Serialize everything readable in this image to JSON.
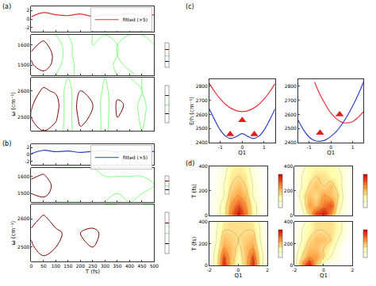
{
  "chart_data": [
    {
      "type": "line",
      "panel": "(a)",
      "legend": "upper right",
      "tick_labels": "y",
      "x": [
        0,
        50,
        100,
        150,
        200,
        250,
        300,
        350,
        400,
        450,
        500
      ],
      "xlim": [
        0,
        500
      ],
      "xticks": [
        0,
        50,
        100,
        150,
        200,
        250,
        300,
        350,
        400,
        450,
        500
      ],
      "ylim": [
        -3,
        3
      ],
      "yticks": [
        -2,
        0,
        2
      ],
      "series": [
        {
          "name": "fitted (×5)",
          "color": "#e03030",
          "values": [
            0.5,
            1.5,
            1.0,
            0.8,
            1.2,
            0.6,
            1.0,
            0.9,
            1.3,
            0.7,
            1.0
          ]
        }
      ]
    },
    {
      "type": "contour",
      "tick_labels": "y",
      "x": [
        0,
        50,
        100,
        150,
        200,
        250,
        300,
        350,
        400,
        450,
        500
      ],
      "y": [
        1450,
        1500,
        1550,
        1600,
        1650
      ],
      "xlim": [
        0,
        500
      ],
      "xticks": [
        0,
        50,
        100,
        150,
        200,
        250,
        300,
        350,
        400,
        450,
        500
      ],
      "ylim": [
        1450,
        1650
      ],
      "yticks": [
        1500,
        1600
      ],
      "colorbar_range": [
        -1,
        1
      ],
      "z": [
        [
          0.1,
          0.2,
          0,
          -0.1,
          0.1,
          0,
          0.1,
          0,
          -0.1,
          0.1,
          0
        ],
        [
          0.4,
          0.9,
          0.2,
          -0.3,
          0.3,
          0.1,
          0.2,
          -0.1,
          0.1,
          0.2,
          0
        ],
        [
          0.6,
          1.0,
          0.3,
          -0.2,
          0.4,
          0.2,
          0.3,
          0,
          0.2,
          0.3,
          0.1
        ],
        [
          0.3,
          0.7,
          0.1,
          -0.1,
          0.2,
          0,
          0.1,
          0,
          0.1,
          0.1,
          0
        ],
        [
          0,
          0.2,
          0,
          0,
          0.1,
          0,
          0,
          0,
          0,
          0,
          0
        ]
      ]
    },
    {
      "type": "contour",
      "tick_labels": "y",
      "ylabel": "ω (cm⁻¹)",
      "x": [
        0,
        50,
        100,
        150,
        200,
        250,
        300,
        350,
        400,
        450,
        500
      ],
      "y": [
        2450,
        2500,
        2550,
        2600,
        2650
      ],
      "xlim": [
        0,
        500
      ],
      "xticks": [
        0,
        50,
        100,
        150,
        200,
        250,
        300,
        350,
        400,
        450,
        500
      ],
      "ylim": [
        2450,
        2650
      ],
      "yticks": [
        2500,
        2600
      ],
      "colorbar_range": [
        -1,
        1
      ],
      "z": [
        [
          0.2,
          0.5,
          0.3,
          -0.2,
          0.4,
          0.2,
          -0.1,
          0.3,
          0.1,
          0,
          0.2
        ],
        [
          0.5,
          0.9,
          0.6,
          -0.3,
          0.7,
          0.4,
          -0.2,
          0.5,
          0.3,
          -0.1,
          0.3
        ],
        [
          0.4,
          1.0,
          0.8,
          -0.4,
          0.9,
          0.5,
          -0.3,
          0.6,
          0.4,
          -0.2,
          0.4
        ],
        [
          0.2,
          0.6,
          0.4,
          -0.2,
          0.5,
          0.3,
          -0.1,
          0.3,
          0.2,
          0,
          0.2
        ],
        [
          0,
          0.2,
          0.1,
          0,
          0.2,
          0.1,
          0,
          0.1,
          0,
          0,
          0.1
        ]
      ]
    },
    {
      "type": "line",
      "panel": "(b)",
      "legend": "upper right",
      "tick_labels": "y",
      "x": [
        0,
        50,
        100,
        150,
        200,
        250,
        300,
        350,
        400,
        450,
        500
      ],
      "xlim": [
        0,
        500
      ],
      "xticks": [
        0,
        50,
        100,
        150,
        200,
        250,
        300,
        350,
        400,
        450,
        500
      ],
      "ylim": [
        -3,
        3
      ],
      "yticks": [
        -2,
        0,
        2
      ],
      "series": [
        {
          "name": "fitted (×5)",
          "color": "#2040c0",
          "values": [
            0.2,
            1.2,
            0.8,
            1.0,
            0.6,
            0.9,
            1.1,
            0.7,
            1.0,
            0.8,
            0.9
          ]
        }
      ]
    },
    {
      "type": "contour",
      "tick_labels": "y",
      "x": [
        0,
        50,
        100,
        150,
        200,
        250,
        300,
        350,
        400,
        450,
        500
      ],
      "y": [
        1450,
        1500,
        1550,
        1600,
        1650
      ],
      "xlim": [
        0,
        500
      ],
      "xticks": [
        0,
        50,
        100,
        150,
        200,
        250,
        300,
        350,
        400,
        450,
        500
      ],
      "ylim": [
        1450,
        1650
      ],
      "yticks": [
        1500,
        1600
      ],
      "colorbar_range": [
        -1,
        1
      ],
      "z": [
        [
          0,
          0.1,
          0,
          0,
          0,
          0.1,
          0,
          0,
          0,
          0,
          0
        ],
        [
          0.5,
          0.8,
          0.1,
          0.2,
          0.1,
          0.2,
          0.1,
          0,
          0.1,
          0,
          0
        ],
        [
          0.7,
          1.0,
          0.2,
          0.3,
          0.2,
          0.3,
          0.1,
          0.1,
          0.1,
          0.1,
          0
        ],
        [
          0.4,
          0.6,
          0.1,
          0.1,
          0.1,
          0.1,
          0,
          0,
          0,
          0,
          0
        ],
        [
          0.1,
          0.2,
          0,
          0,
          0,
          0,
          0,
          0,
          0,
          0,
          0
        ]
      ]
    },
    {
      "type": "contour",
      "xlabel": "T (fs)",
      "ylabel": "ω (cm⁻¹)",
      "x": [
        0,
        50,
        100,
        150,
        200,
        250,
        300,
        350,
        400,
        450,
        500
      ],
      "y": [
        2450,
        2500,
        2550,
        2600,
        2650
      ],
      "xlim": [
        0,
        500
      ],
      "xticks": [
        0,
        50,
        100,
        150,
        200,
        250,
        300,
        350,
        400,
        450,
        500
      ],
      "ylim": [
        2450,
        2650
      ],
      "yticks": [
        2500,
        2600
      ],
      "colorbar_range": [
        -1,
        1
      ],
      "z": [
        [
          0.1,
          0.3,
          0.2,
          0.1,
          0.1,
          0.2,
          0.1,
          0.1,
          0,
          0.1,
          0
        ],
        [
          0.4,
          0.8,
          0.5,
          0.3,
          0.4,
          0.5,
          0.3,
          0.2,
          0.3,
          0.2,
          0.1
        ],
        [
          0.6,
          1.0,
          0.6,
          0.4,
          0.5,
          0.6,
          0.4,
          0.3,
          0.4,
          0.3,
          0.2
        ],
        [
          0.3,
          0.6,
          0.3,
          0.2,
          0.3,
          0.3,
          0.2,
          0.1,
          0.2,
          0.1,
          0.1
        ],
        [
          0.1,
          0.2,
          0.1,
          0,
          0.1,
          0.1,
          0,
          0,
          0.1,
          0,
          0
        ]
      ]
    },
    {
      "type": "line",
      "panel": "(c)",
      "xlabel": "Q1",
      "ylabel": "E/h (cm⁻¹)",
      "x": [
        -1.5,
        -1.25,
        -1,
        -0.75,
        -0.5,
        -0.25,
        0,
        0.25,
        0.5,
        0.75,
        1,
        1.25,
        1.5
      ],
      "xlim": [
        -1.5,
        1.5
      ],
      "xticks": [
        -1,
        0,
        1
      ],
      "ylim": [
        2400,
        2850
      ],
      "yticks": [
        2400,
        2500,
        2600,
        2700,
        2800
      ],
      "series": [
        {
          "color": "#e8303a",
          "values": [
            2820,
            2760,
            2710,
            2670,
            2643,
            2626,
            2620,
            2626,
            2643,
            2670,
            2710,
            2760,
            2820
          ]
        },
        {
          "color": "#2a3fd0",
          "values": [
            2640,
            2560,
            2490,
            2445,
            2430,
            2445,
            2465,
            2445,
            2430,
            2445,
            2490,
            2560,
            2640
          ]
        },
        {
          "type": "scatter",
          "marker": "triangle-up",
          "color": "#e02020",
          "x": [
            -0.55,
            0,
            0.55
          ],
          "values": [
            2460,
            2560,
            2460
          ]
        }
      ]
    },
    {
      "type": "line",
      "xlabel": "Q1",
      "x": [
        -1.5,
        -1.25,
        -1,
        -0.75,
        -0.5,
        -0.25,
        0,
        0.25,
        0.5,
        0.75,
        1,
        1.25,
        1.5
      ],
      "xlim": [
        -1.5,
        1.5
      ],
      "xticks": [
        -1,
        0,
        1
      ],
      "ylim": [
        2400,
        2850
      ],
      "yticks": [
        2400,
        2500,
        2600,
        2700,
        2800
      ],
      "series": [
        {
          "color": "#e8303a",
          "values": [
            null,
            null,
            null,
            2830,
            2740,
            2670,
            2610,
            2570,
            2545,
            2540,
            2550,
            2580,
            2620
          ]
        },
        {
          "color": "#2a3fd0",
          "values": [
            2560,
            2490,
            2440,
            2415,
            2410,
            2420,
            2445,
            2480,
            2530,
            2590,
            2660,
            2740,
            2830
          ]
        },
        {
          "type": "scatter",
          "marker": "triangle-up",
          "color": "#e02020",
          "x": [
            -0.5,
            0.4
          ],
          "values": [
            2470,
            2600
          ]
        }
      ]
    },
    {
      "type": "heatmap",
      "panel": "(d)",
      "ylabel": "T (fs)",
      "tick_labels": "y",
      "x": [
        -2,
        -1.5,
        -1,
        -0.5,
        0,
        0.5,
        1,
        1.5,
        2
      ],
      "y": [
        0,
        80,
        160,
        240,
        320,
        400
      ],
      "xlim": [
        -2,
        2
      ],
      "xticks": [
        -2,
        0,
        2
      ],
      "ylim": [
        0,
        400
      ],
      "yticks": [
        0,
        200,
        400
      ],
      "colorbar_range": [
        0,
        1
      ],
      "z": [
        [
          0.05,
          0.1,
          0.3,
          0.7,
          1.0,
          0.7,
          0.3,
          0.1,
          0.05
        ],
        [
          0.05,
          0.1,
          0.3,
          0.6,
          0.8,
          0.6,
          0.3,
          0.1,
          0.05
        ],
        [
          0,
          0.1,
          0.2,
          0.5,
          0.6,
          0.5,
          0.2,
          0.1,
          0
        ],
        [
          0,
          0.05,
          0.2,
          0.4,
          0.5,
          0.4,
          0.2,
          0.05,
          0
        ],
        [
          0,
          0.05,
          0.15,
          0.35,
          0.4,
          0.35,
          0.15,
          0.05,
          0
        ],
        [
          0,
          0.05,
          0.1,
          0.3,
          0.35,
          0.3,
          0.1,
          0.05,
          0
        ]
      ]
    },
    {
      "type": "heatmap",
      "tick_labels": "y",
      "x": [
        -2,
        -1.5,
        -1,
        -0.5,
        0,
        0.5,
        1,
        1.5,
        2
      ],
      "y": [
        0,
        80,
        160,
        240,
        320,
        400
      ],
      "xlim": [
        -2,
        2
      ],
      "xticks": [
        -2,
        0,
        2
      ],
      "ylim": [
        0,
        400
      ],
      "yticks": [
        0,
        200,
        400
      ],
      "colorbar_range": [
        0,
        1
      ],
      "z": [
        [
          0,
          0.1,
          0.4,
          0.9,
          1.0,
          0.6,
          0.2,
          0.05,
          0
        ],
        [
          0,
          0.2,
          0.6,
          0.5,
          0.7,
          0.8,
          0.3,
          0.1,
          0
        ],
        [
          0,
          0.3,
          0.5,
          0.4,
          0.6,
          0.5,
          0.4,
          0.1,
          0
        ],
        [
          0,
          0.2,
          0.4,
          0.5,
          0.4,
          0.5,
          0.3,
          0.1,
          0
        ],
        [
          0,
          0.2,
          0.3,
          0.4,
          0.4,
          0.3,
          0.3,
          0.1,
          0
        ],
        [
          0,
          0.1,
          0.3,
          0.3,
          0.3,
          0.3,
          0.2,
          0.1,
          0
        ]
      ]
    },
    {
      "type": "heatmap",
      "xlabel": "Q1",
      "ylabel": "T (fs)",
      "x": [
        -2,
        -1.5,
        -1,
        -0.5,
        0,
        0.5,
        1,
        1.5,
        2
      ],
      "y": [
        0,
        80,
        160,
        240,
        320,
        400
      ],
      "xlim": [
        -2,
        2
      ],
      "xticks": [
        -2,
        0,
        2
      ],
      "ylim": [
        0,
        400
      ],
      "yticks": [
        0,
        200,
        400
      ],
      "colorbar_range": [
        0,
        1
      ],
      "z": [
        [
          0.05,
          0.3,
          0.9,
          0.5,
          0.2,
          0.5,
          0.9,
          0.3,
          0.05
        ],
        [
          0.05,
          0.3,
          0.8,
          0.5,
          0.3,
          0.5,
          0.8,
          0.3,
          0.05
        ],
        [
          0.05,
          0.25,
          0.6,
          0.5,
          0.35,
          0.5,
          0.6,
          0.25,
          0.05
        ],
        [
          0.05,
          0.2,
          0.5,
          0.45,
          0.4,
          0.45,
          0.5,
          0.2,
          0.05
        ],
        [
          0,
          0.2,
          0.4,
          0.4,
          0.4,
          0.4,
          0.4,
          0.2,
          0
        ],
        [
          0,
          0.15,
          0.35,
          0.4,
          0.4,
          0.4,
          0.35,
          0.15,
          0
        ]
      ]
    },
    {
      "type": "heatmap",
      "xlabel": "Q1",
      "x": [
        -2,
        -1.5,
        -1,
        -0.5,
        0,
        0.5,
        1,
        1.5,
        2
      ],
      "y": [
        0,
        80,
        160,
        240,
        320,
        400
      ],
      "xlim": [
        -2,
        2
      ],
      "xticks": [
        -2,
        0,
        2
      ],
      "ylim": [
        0,
        400
      ],
      "yticks": [
        0,
        200,
        400
      ],
      "colorbar_range": [
        0,
        1
      ],
      "z": [
        [
          0.1,
          0.6,
          1.0,
          0.5,
          0.1,
          0,
          0,
          0,
          0
        ],
        [
          0.1,
          0.4,
          0.6,
          0.6,
          0.4,
          0.2,
          0.1,
          0,
          0
        ],
        [
          0.05,
          0.3,
          0.5,
          0.5,
          0.4,
          0.3,
          0.1,
          0,
          0
        ],
        [
          0.05,
          0.2,
          0.4,
          0.5,
          0.5,
          0.4,
          0.2,
          0.05,
          0
        ],
        [
          0,
          0.2,
          0.3,
          0.4,
          0.4,
          0.4,
          0.3,
          0.1,
          0
        ],
        [
          0,
          0.1,
          0.3,
          0.4,
          0.4,
          0.4,
          0.3,
          0.1,
          0
        ]
      ]
    }
  ]
}
